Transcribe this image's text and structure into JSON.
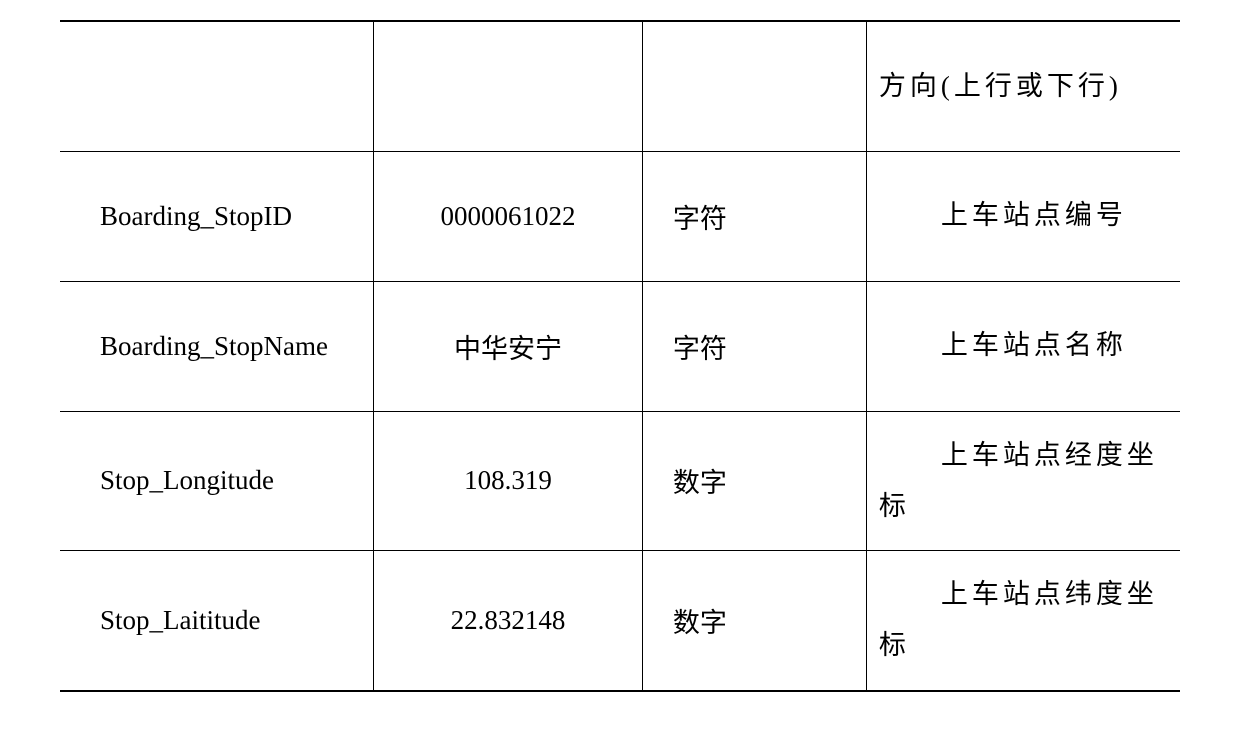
{
  "table": {
    "type": "table",
    "border_color": "#000000",
    "background_color": "#ffffff",
    "text_color": "#000000",
    "font_size_pt": 20,
    "latin_font": "Times New Roman",
    "cjk_font": "SimSun",
    "columns_width_pct": [
      28,
      24,
      20,
      28
    ],
    "rows": [
      {
        "col1": "",
        "col2": "",
        "col3": "",
        "col4": "方向(上行或下行)",
        "col2_type": "latin"
      },
      {
        "col1": "Boarding_StopID",
        "col2": "0000061022",
        "col3": "字符",
        "col4": "　　上车站点编号",
        "col2_type": "latin"
      },
      {
        "col1": "Boarding_StopName",
        "col2": "中华安宁",
        "col3": "字符",
        "col4": "　　上车站点名称",
        "col2_type": "cjk"
      },
      {
        "col1": "Stop_Longitude",
        "col2": "108.319",
        "col3": "数字",
        "col4": "　　上车站点经度坐标",
        "col2_type": "latin"
      },
      {
        "col1": "Stop_Laititude",
        "col2": "22.832148",
        "col3": "数字",
        "col4": "　　上车站点纬度坐标",
        "col2_type": "latin"
      }
    ]
  }
}
